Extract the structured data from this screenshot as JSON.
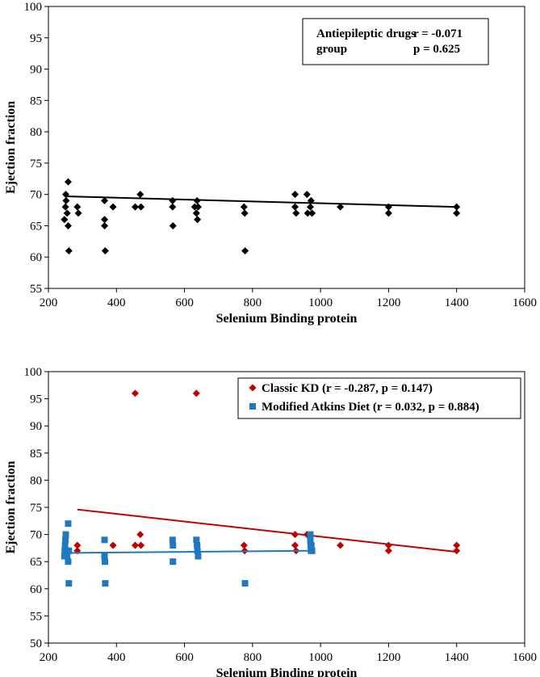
{
  "chart_data": [
    {
      "type": "scatter",
      "title": "",
      "xlabel": "Selenium Binding protein",
      "ylabel": "Ejection fraction",
      "xlim": [
        200,
        1600
      ],
      "ylim": [
        55,
        100
      ],
      "xticks": [
        "200",
        "400",
        "600",
        "800",
        "1000",
        "1200",
        "1400",
        "1600"
      ],
      "yticks": [
        "55",
        "60",
        "65",
        "70",
        "75",
        "80",
        "85",
        "90",
        "95",
        "100"
      ],
      "annotation": {
        "label": "Antiepileptic drugs group",
        "label_line1": "Antiepileptic drugs",
        "label_line2": "group",
        "r": "r = -0.071",
        "p": "p = 0.625"
      },
      "series": [
        {
          "name": "Antiepileptic drugs group",
          "color": "#000000",
          "marker": "diamond",
          "points": [
            [
              247,
              66
            ],
            [
              250,
              68
            ],
            [
              251,
              70
            ],
            [
              252,
              69
            ],
            [
              255,
              67
            ],
            [
              258,
              72
            ],
            [
              258,
              65
            ],
            [
              260,
              61
            ],
            [
              285,
              68
            ],
            [
              288,
              67
            ],
            [
              365,
              69
            ],
            [
              365,
              66
            ],
            [
              365,
              65
            ],
            [
              367,
              61
            ],
            [
              390,
              68
            ],
            [
              455,
              68
            ],
            [
              470,
              70
            ],
            [
              472,
              68
            ],
            [
              565,
              69
            ],
            [
              565,
              68
            ],
            [
              566,
              65
            ],
            [
              630,
              68
            ],
            [
              635,
              67
            ],
            [
              637,
              69
            ],
            [
              638,
              66
            ],
            [
              640,
              68
            ],
            [
              775,
              68
            ],
            [
              777,
              67
            ],
            [
              778,
              61
            ],
            [
              925,
              70
            ],
            [
              925,
              68
            ],
            [
              928,
              67
            ],
            [
              960,
              70
            ],
            [
              962,
              67
            ],
            [
              970,
              68
            ],
            [
              972,
              69
            ],
            [
              975,
              67
            ],
            [
              1058,
              68
            ],
            [
              1200,
              68
            ],
            [
              1200,
              67
            ],
            [
              1400,
              68
            ],
            [
              1400,
              67
            ]
          ],
          "trendline": [
            [
              247,
              69.7
            ],
            [
              1400,
              68.0
            ]
          ]
        }
      ]
    },
    {
      "type": "scatter",
      "title": "",
      "xlabel": "Selenium Binding protein",
      "ylabel": "Ejection fraction",
      "xlim": [
        200,
        1600
      ],
      "ylim": [
        50,
        100
      ],
      "xticks": [
        "200",
        "400",
        "600",
        "800",
        "1000",
        "1200",
        "1400",
        "1600"
      ],
      "yticks": [
        "50",
        "55",
        "60",
        "65",
        "70",
        "75",
        "80",
        "85",
        "90",
        "95",
        "100"
      ],
      "legend_position": "top-right",
      "series": [
        {
          "name": "Classic KD (r = -0.287, p = 0.147)",
          "color": "#c00000",
          "marker": "diamond",
          "points": [
            [
              285,
              68
            ],
            [
              285,
              67
            ],
            [
              390,
              68
            ],
            [
              455,
              96
            ],
            [
              455,
              68
            ],
            [
              470,
              70
            ],
            [
              472,
              68
            ],
            [
              635,
              96
            ],
            [
              637,
              68
            ],
            [
              775,
              68
            ],
            [
              777,
              67
            ],
            [
              925,
              70
            ],
            [
              925,
              68
            ],
            [
              928,
              67
            ],
            [
              960,
              70
            ],
            [
              1058,
              68
            ],
            [
              1200,
              68
            ],
            [
              1200,
              67
            ],
            [
              1400,
              68
            ],
            [
              1400,
              67
            ]
          ],
          "trendline": [
            [
              285,
              74.6
            ],
            [
              1400,
              66.8
            ]
          ]
        },
        {
          "name": "Modified Atkins Diet (r = 0.032, p = 0.884)",
          "color": "#1f78c1",
          "marker": "square",
          "points": [
            [
              247,
              66
            ],
            [
              248,
              67
            ],
            [
              249,
              68
            ],
            [
              250,
              69
            ],
            [
              251,
              70
            ],
            [
              252,
              67
            ],
            [
              255,
              66
            ],
            [
              258,
              72
            ],
            [
              258,
              65
            ],
            [
              260,
              61
            ],
            [
              260,
              67
            ],
            [
              365,
              69
            ],
            [
              365,
              66
            ],
            [
              366,
              65
            ],
            [
              367,
              61
            ],
            [
              565,
              69
            ],
            [
              566,
              68
            ],
            [
              566,
              65
            ],
            [
              635,
              69
            ],
            [
              637,
              68
            ],
            [
              638,
              67
            ],
            [
              640,
              66
            ],
            [
              778,
              61
            ],
            [
              970,
              70
            ],
            [
              970,
              69
            ],
            [
              971,
              68
            ],
            [
              972,
              67
            ],
            [
              973,
              68
            ],
            [
              975,
              67
            ]
          ],
          "trendline": [
            [
              247,
              66.6
            ],
            [
              975,
              67.0
            ]
          ]
        }
      ]
    }
  ]
}
